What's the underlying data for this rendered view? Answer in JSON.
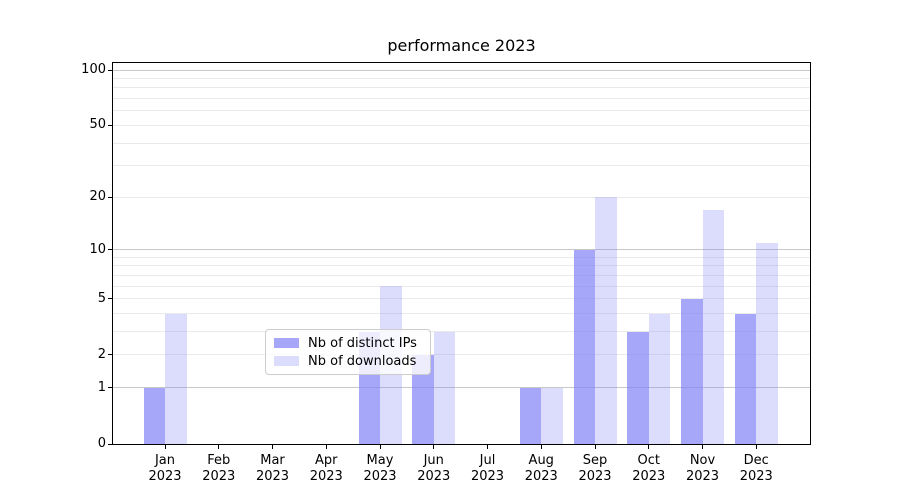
{
  "chart_data": {
    "type": "bar",
    "title": "performance 2023",
    "categories": [
      "Jan",
      "Feb",
      "Mar",
      "Apr",
      "May",
      "Jun",
      "Jul",
      "Aug",
      "Sep",
      "Oct",
      "Nov",
      "Dec"
    ],
    "category_year": "2023",
    "series": [
      {
        "name": "Nb of distinct IPs",
        "key": "distinct-ips",
        "values": [
          1,
          0,
          0,
          0,
          3,
          2,
          0,
          1,
          10,
          3,
          5,
          4
        ],
        "color": "rgba(130,130,248,0.70)"
      },
      {
        "name": "Nb of downloads",
        "key": "downloads",
        "values": [
          4,
          0,
          0,
          0,
          6,
          3,
          0,
          1,
          20,
          4,
          17,
          11
        ],
        "color": "rgba(130,130,248,0.28)"
      }
    ],
    "xlabel": "",
    "ylabel": "",
    "y_scale": "log1p",
    "ylim": [
      0,
      109
    ],
    "y_ticks": [
      0,
      1,
      2,
      5,
      10,
      20,
      50,
      100
    ],
    "grid": "horizontal",
    "grid_major": [
      1,
      10,
      100
    ],
    "grid_minor": [
      2,
      3,
      4,
      5,
      6,
      7,
      8,
      9,
      20,
      30,
      40,
      50,
      60,
      70,
      80,
      90
    ],
    "legend": {
      "position": "lower center"
    },
    "colors": {
      "bar_base": "#8282f8",
      "grid_major": "#c8c8c8",
      "grid_minor": "#eaeaea",
      "axis": "#000000",
      "background": "#ffffff"
    }
  }
}
